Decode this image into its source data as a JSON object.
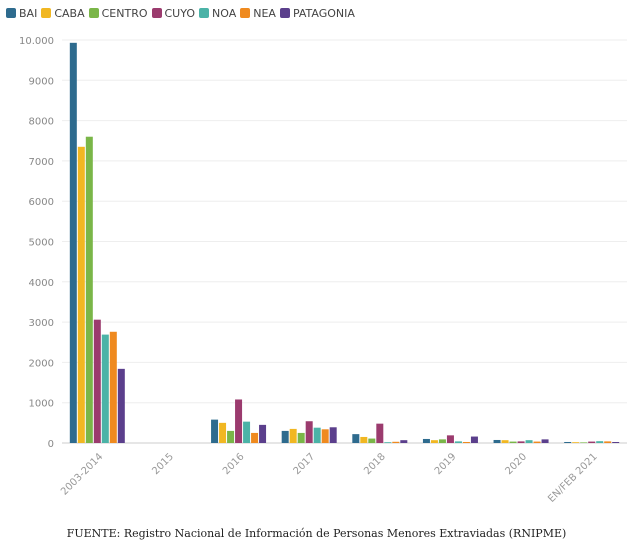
{
  "chart_data": {
    "type": "bar",
    "title": "",
    "xlabel": "",
    "ylabel": "",
    "ylim": [
      0,
      10000
    ],
    "yticks": [
      0,
      1000,
      2000,
      3000,
      4000,
      5000,
      6000,
      7000,
      8000,
      9000,
      10000
    ],
    "ytick_labels": [
      "0",
      "1000",
      "2000",
      "3000",
      "4000",
      "5000",
      "6000",
      "7000",
      "8000",
      "9000",
      "10.000"
    ],
    "grid": true,
    "legend_position": "top-left",
    "categories": [
      "2003-2014",
      "2015",
      "2016",
      "2017",
      "2018",
      "2019",
      "2020",
      "EN/FEB 2021"
    ],
    "series": [
      {
        "name": "BAI",
        "color": "#2e6b8e",
        "values": [
          9930,
          0,
          580,
          300,
          220,
          100,
          75,
          25
        ]
      },
      {
        "name": "CABA",
        "color": "#f1b722",
        "values": [
          7350,
          0,
          500,
          350,
          150,
          70,
          70,
          20
        ]
      },
      {
        "name": "CENTRO",
        "color": "#7ab648",
        "values": [
          7600,
          0,
          300,
          250,
          110,
          90,
          35,
          15
        ]
      },
      {
        "name": "CUYO",
        "color": "#9b3b6e",
        "values": [
          3060,
          0,
          1080,
          540,
          480,
          190,
          40,
          35
        ]
      },
      {
        "name": "NOA",
        "color": "#4bb3a7",
        "values": [
          2690,
          0,
          530,
          380,
          20,
          40,
          70,
          45
        ]
      },
      {
        "name": "NEA",
        "color": "#ef8a1f",
        "values": [
          2760,
          0,
          250,
          340,
          30,
          25,
          35,
          40
        ]
      },
      {
        "name": "PATAGONIA",
        "color": "#5b3f8c",
        "values": [
          1840,
          0,
          450,
          390,
          70,
          160,
          90,
          25
        ]
      }
    ]
  },
  "source_text": "FUENTE: Registro Nacional de Información de Personas Menores Extraviadas (RNIPME)"
}
